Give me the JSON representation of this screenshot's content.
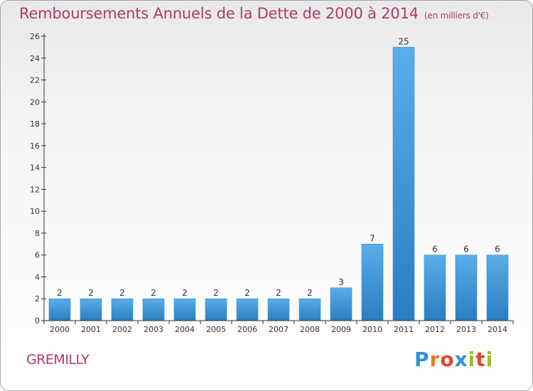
{
  "title": "Remboursements Annuels de la Dette de 2000 à 2014",
  "subtitle": "(en milliers d'€)",
  "place_name": "GREMILLY",
  "logo": [
    "P",
    "r",
    "o",
    "x",
    "i",
    "t",
    "i"
  ],
  "colors": {
    "bar_light": "#5aaeea",
    "bar_dark": "#2a7dc0",
    "title": "#b03a6e",
    "axis": "#333333"
  },
  "chart_data": {
    "type": "bar",
    "title": "Remboursements Annuels de la Dette de 2000 à 2014",
    "categories": [
      "2000",
      "2001",
      "2002",
      "2003",
      "2004",
      "2005",
      "2006",
      "2007",
      "2008",
      "2009",
      "2010",
      "2011",
      "2012",
      "2013",
      "2014"
    ],
    "values": [
      2,
      2,
      2,
      2,
      2,
      2,
      2,
      2,
      2,
      3,
      7,
      25,
      6,
      6,
      6
    ],
    "data_labels": [
      "2",
      "2",
      "2",
      "2",
      "2",
      "2",
      "2",
      "2",
      "2",
      "3",
      "7",
      "25",
      "6",
      "6",
      "6"
    ],
    "xlabel": "",
    "ylabel": "",
    "ylim": [
      0,
      26
    ],
    "yticks": [
      0,
      2,
      4,
      6,
      8,
      10,
      12,
      14,
      16,
      18,
      20,
      22,
      24,
      26
    ],
    "grid": false,
    "legend": "none"
  }
}
